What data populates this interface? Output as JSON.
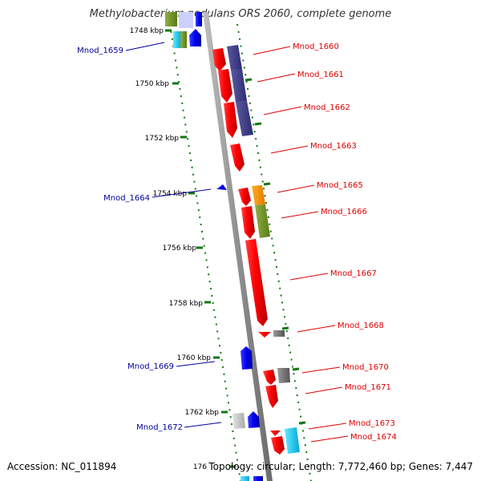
{
  "title": "Methylobacterium nodulans ORS 2060, complete genome",
  "accession": "Accession: NC_011894",
  "topology": "Topology: circular; Length: 7,772,460 bp; Genes: 7,447",
  "colors": {
    "forward_label": "#dd0000",
    "reverse_label": "#000099",
    "backbone": "#8c8c8c",
    "tick": "#117711"
  },
  "ticks": [
    "1748 kbp",
    "1750 kbp",
    "1752 kbp",
    "1754 kbp",
    "1756 kbp",
    "1758 kbp",
    "1760 kbp",
    "1762 kbp",
    "176"
  ],
  "forward_labels": [
    "Mnod_1660",
    "Mnod_1661",
    "Mnod_1662",
    "Mnod_1663",
    "Mnod_1665",
    "Mnod_1666",
    "Mnod_1667",
    "Mnod_1668",
    "Mnod_1670",
    "Mnod_1671",
    "Mnod_1673",
    "Mnod_1674"
  ],
  "reverse_labels": [
    "Mnod_1659",
    "Mnod_1664",
    "Mnod_1669",
    "Mnod_1672"
  ]
}
